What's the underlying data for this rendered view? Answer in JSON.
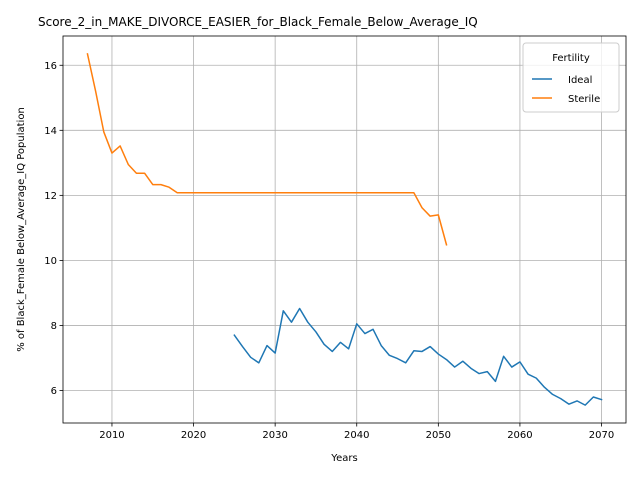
{
  "chart_data": {
    "type": "line",
    "title": "Score_2_in_MAKE_DIVORCE_EASIER_for_Black_Female_Below_Average_IQ",
    "xlabel": "Years",
    "ylabel": "% of Black_Female Below_Average_IQ Population",
    "xlim": [
      2004,
      2073
    ],
    "ylim": [
      5.0,
      16.9
    ],
    "xticks": [
      2010,
      2020,
      2030,
      2040,
      2050,
      2060,
      2070
    ],
    "yticks": [
      6,
      8,
      10,
      12,
      14,
      16
    ],
    "grid": true,
    "legend": {
      "title": "Fertility",
      "placement": "top-right"
    },
    "series": [
      {
        "name": "Ideal",
        "color": "#1f77b4",
        "x": [
          2025,
          2026,
          2027,
          2028,
          2029,
          2030,
          2031,
          2032,
          2033,
          2034,
          2035,
          2036,
          2037,
          2038,
          2039,
          2040,
          2041,
          2042,
          2043,
          2044,
          2045,
          2046,
          2047,
          2048,
          2049,
          2050,
          2051,
          2052,
          2053,
          2054,
          2055,
          2056,
          2057,
          2058,
          2059,
          2060,
          2061,
          2062,
          2063,
          2064,
          2065,
          2066,
          2067,
          2068,
          2069,
          2070
        ],
        "y": [
          7.7,
          7.35,
          7.02,
          6.85,
          7.38,
          7.15,
          8.45,
          8.1,
          8.52,
          8.1,
          7.8,
          7.42,
          7.2,
          7.48,
          7.28,
          8.05,
          7.75,
          7.88,
          7.38,
          7.08,
          6.98,
          6.85,
          7.22,
          7.2,
          7.35,
          7.12,
          6.95,
          6.72,
          6.9,
          6.68,
          6.52,
          6.58,
          6.28,
          7.05,
          6.72,
          6.88,
          6.5,
          6.38,
          6.1,
          5.88,
          5.75,
          5.58,
          5.68,
          5.55,
          5.8,
          5.72
        ]
      },
      {
        "name": "Sterile",
        "color": "#ff7f0e",
        "x": [
          2007,
          2008,
          2009,
          2010,
          2011,
          2012,
          2013,
          2014,
          2015,
          2016,
          2017,
          2018,
          2019,
          2020,
          2025,
          2030,
          2035,
          2040,
          2045,
          2047,
          2048,
          2049,
          2050,
          2051
        ],
        "y": [
          16.35,
          15.2,
          13.95,
          13.3,
          13.52,
          12.95,
          12.68,
          12.68,
          12.33,
          12.33,
          12.25,
          12.08,
          12.08,
          12.08,
          12.08,
          12.08,
          12.08,
          12.08,
          12.08,
          12.08,
          11.62,
          11.36,
          11.4,
          10.48
        ]
      }
    ]
  }
}
